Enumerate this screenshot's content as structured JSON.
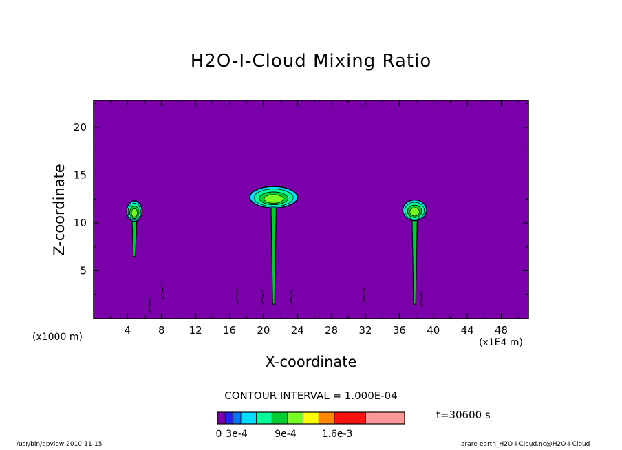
{
  "chart_data": {
    "type": "heatmap",
    "title": "H2O-I-Cloud Mixing Ratio",
    "xlabel": "X-coordinate",
    "ylabel": "Z-coordinate",
    "x_unit_left": "(x1000 m)",
    "x_unit_right": "(x1E4 m)",
    "xlim": [
      0,
      51.2
    ],
    "ylim": [
      0,
      22.8
    ],
    "x_ticks": [
      4,
      8,
      12,
      16,
      20,
      24,
      28,
      32,
      36,
      40,
      44,
      48
    ],
    "y_ticks": [
      5,
      10,
      15,
      20
    ],
    "contour_interval_text": "CONTOUR INTERVAL = 1.000E-04",
    "time_text": "t=30600 s",
    "background_color": "#7a00aa",
    "colorbar": {
      "colors": [
        "#7a00aa",
        "#2222ee",
        "#0077ff",
        "#00ddff",
        "#00ff99",
        "#00cc33",
        "#77ff22",
        "#ffff00",
        "#ff8800",
        "#ff1111",
        "#ff9999"
      ],
      "labels": [
        {
          "text": "0",
          "at": 0
        },
        {
          "text": "3e-4",
          "at": 0.0003
        },
        {
          "text": "9e-4",
          "at": 0.0009
        },
        {
          "text": "1.6e-3",
          "at": 0.0016
        }
      ]
    },
    "clouds": [
      {
        "x_center": 4.8,
        "top_z": 12.3,
        "anvil_width": 1.8,
        "stem_base_z": 6.5
      },
      {
        "x_center": 21.2,
        "top_z": 13.8,
        "anvil_width": 5.6,
        "stem_base_z": 1.5
      },
      {
        "x_center": 37.8,
        "top_z": 12.4,
        "anvil_width": 2.8,
        "stem_base_z": 1.5
      }
    ]
  },
  "footer": {
    "left": "/usr/bin/gpview   2010-11-15",
    "right": "arare-earth_H2O-I-Cloud.nc@H2O-I-Cloud"
  }
}
